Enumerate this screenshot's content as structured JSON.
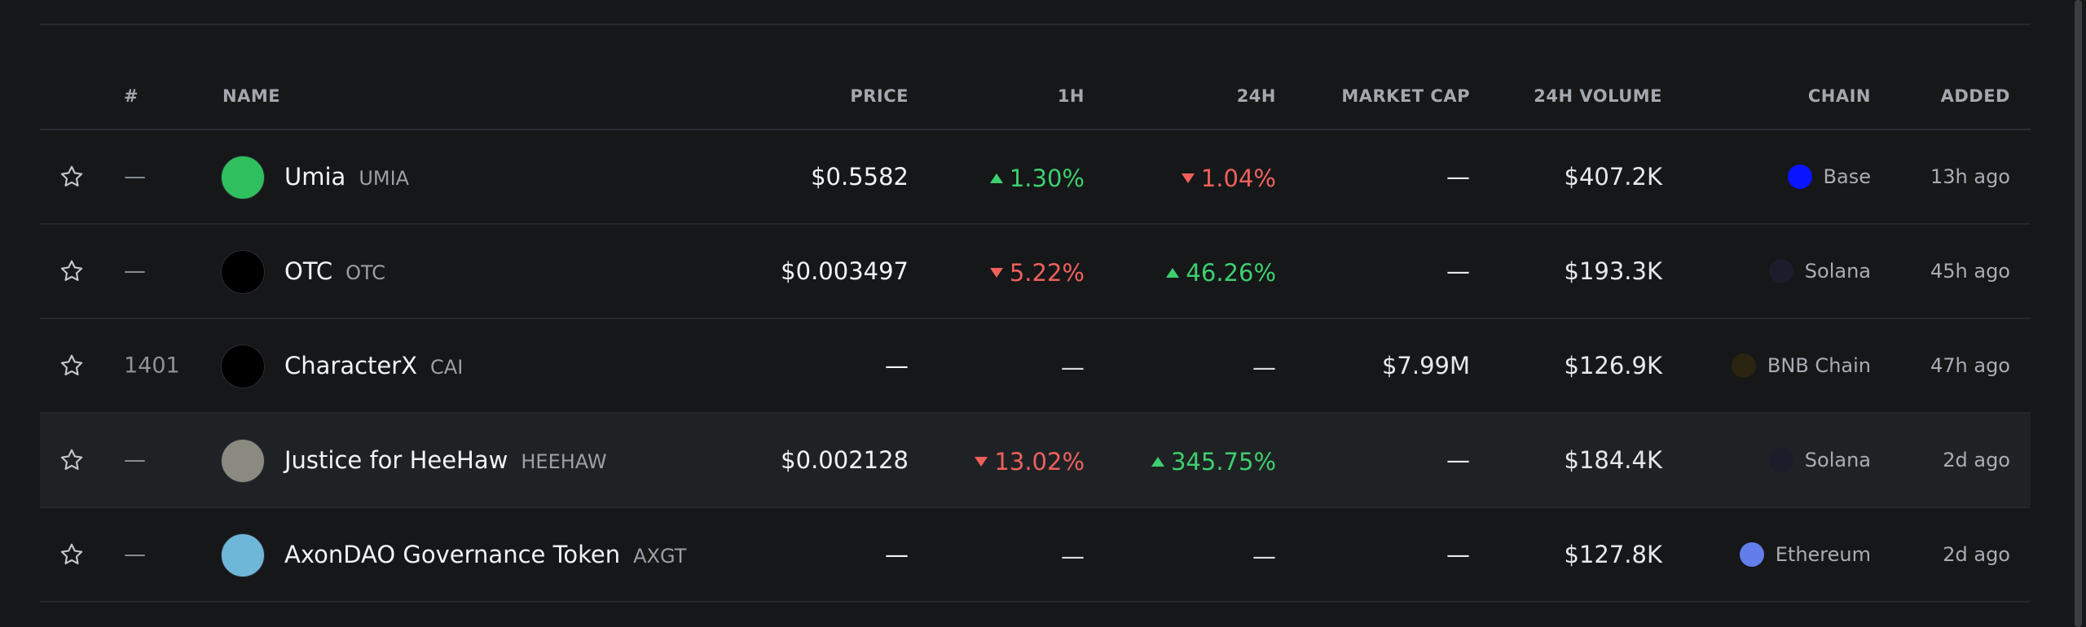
{
  "table": {
    "headers": [
      "#",
      "NAME",
      "PRICE",
      "1H",
      "24H",
      "MARKET CAP",
      "24H VOLUME",
      "CHAIN",
      "ADDED"
    ],
    "hover_row": 3,
    "rows": [
      {
        "rank": "—",
        "name": "Umia",
        "symbol": "UMIA",
        "price": "$0.5582",
        "change_1h": "1.30%",
        "change_1h_dir": "up",
        "change_24h": "1.04%",
        "change_24h_dir": "down",
        "market_cap": "—",
        "volume": "$407.2K",
        "chain": "Base",
        "added": "13h ago",
        "icon_color": "#2fbf5e",
        "chain_color": "#0a14ff"
      },
      {
        "rank": "—",
        "name": "OTC",
        "symbol": "OTC",
        "price": "$0.003497",
        "change_1h": "5.22%",
        "change_1h_dir": "down",
        "change_24h": "46.26%",
        "change_24h_dir": "up",
        "market_cap": "—",
        "volume": "$193.3K",
        "chain": "Solana",
        "added": "45h ago",
        "icon_color": "#000000",
        "chain_color": "#1c1c2a"
      },
      {
        "rank": "1401",
        "name": "CharacterX",
        "symbol": "CAI",
        "price": "—",
        "change_1h": "—",
        "change_24h": "—",
        "market_cap": "$7.99M",
        "volume": "$126.9K",
        "chain": "BNB Chain",
        "added": "47h ago",
        "icon_color": "#000000",
        "chain_color": "#2a2410"
      },
      {
        "rank": "—",
        "name": "Justice for HeeHaw",
        "symbol": "HEEHAW",
        "price": "$0.002128",
        "change_1h": "13.02%",
        "change_1h_dir": "down",
        "change_24h": "345.75%",
        "change_24h_dir": "up",
        "market_cap": "—",
        "volume": "$184.4K",
        "chain": "Solana",
        "added": "2d ago",
        "icon_color": "#8a8a80",
        "chain_color": "#1c1c2a"
      },
      {
        "rank": "—",
        "name": "AxonDAO Governance Token",
        "symbol": "AXGT",
        "price": "—",
        "change_1h": "—",
        "change_24h": "—",
        "market_cap": "—",
        "volume": "$127.8K",
        "chain": "Ethereum",
        "added": "2d ago",
        "icon_color": "#6fb7d8",
        "chain_color": "#627eea"
      }
    ]
  }
}
